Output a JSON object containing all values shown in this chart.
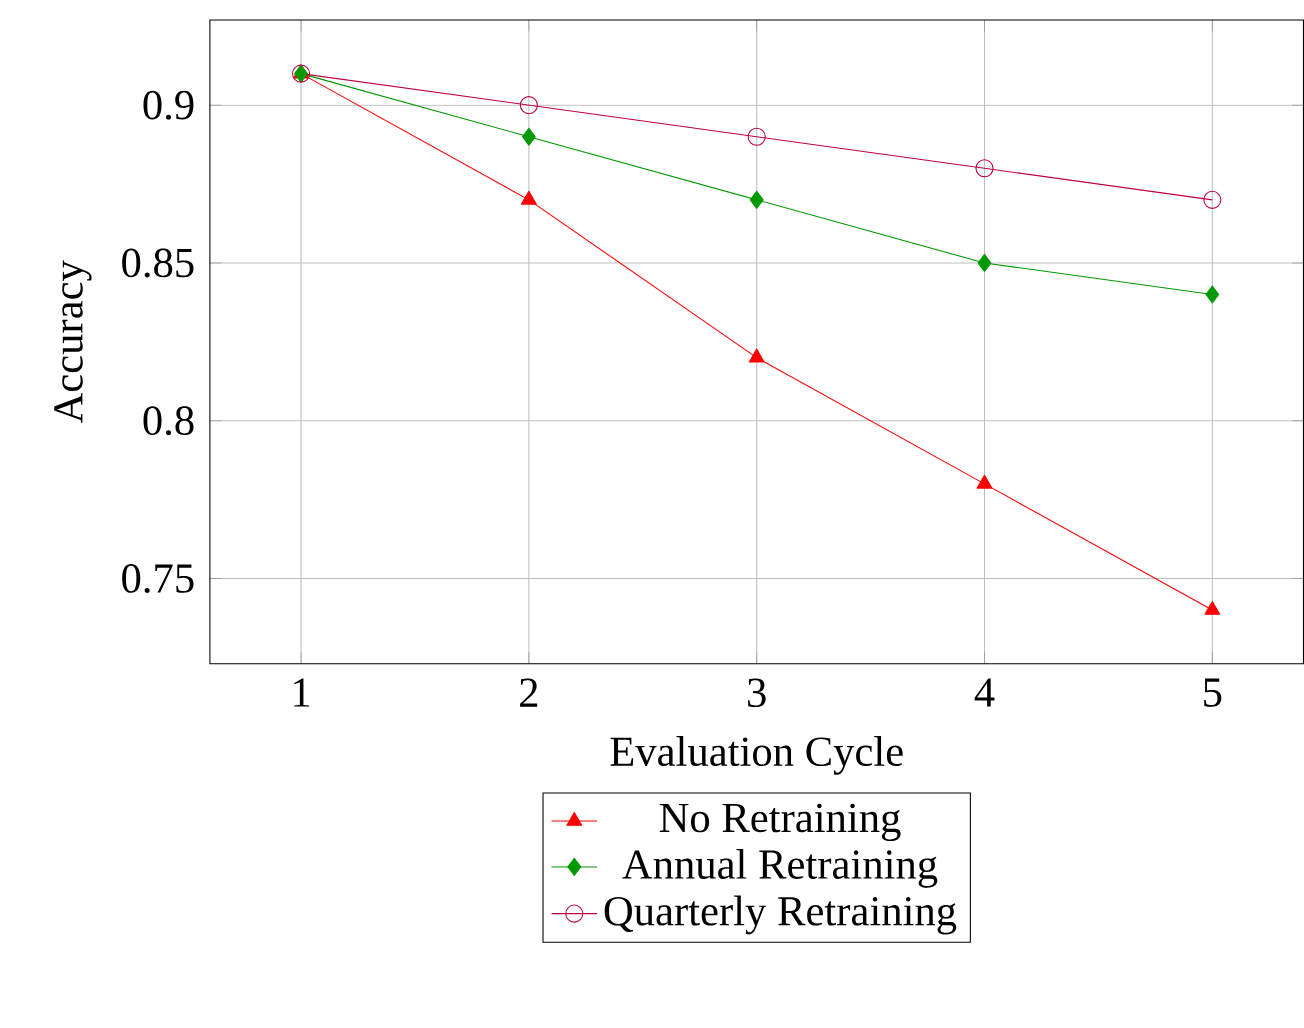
{
  "chart_data": {
    "type": "line",
    "xlabel": "Evaluation Cycle",
    "ylabel": "Accuracy",
    "x": [
      1,
      2,
      3,
      4,
      5
    ],
    "series": [
      {
        "name": "No Retraining",
        "color": "#ff0000",
        "marker": "triangle",
        "values": [
          0.91,
          0.87,
          0.82,
          0.78,
          0.74
        ]
      },
      {
        "name": "Annual Retraining",
        "color": "#009900",
        "marker": "diamond",
        "values": [
          0.91,
          0.89,
          0.87,
          0.85,
          0.84
        ]
      },
      {
        "name": "Quarterly Retraining",
        "color": "#bf0040",
        "marker": "circle",
        "values": [
          0.91,
          0.9,
          0.89,
          0.88,
          0.87
        ]
      }
    ],
    "xlim": [
      0.6,
      5.4
    ],
    "ylim": [
      0.723,
      0.927
    ],
    "xticks": [
      1,
      2,
      3,
      4,
      5
    ],
    "yticks": [
      0.75,
      0.8,
      0.85,
      0.9
    ],
    "grid": true,
    "legend": "bottom",
    "line_style": "solid"
  }
}
